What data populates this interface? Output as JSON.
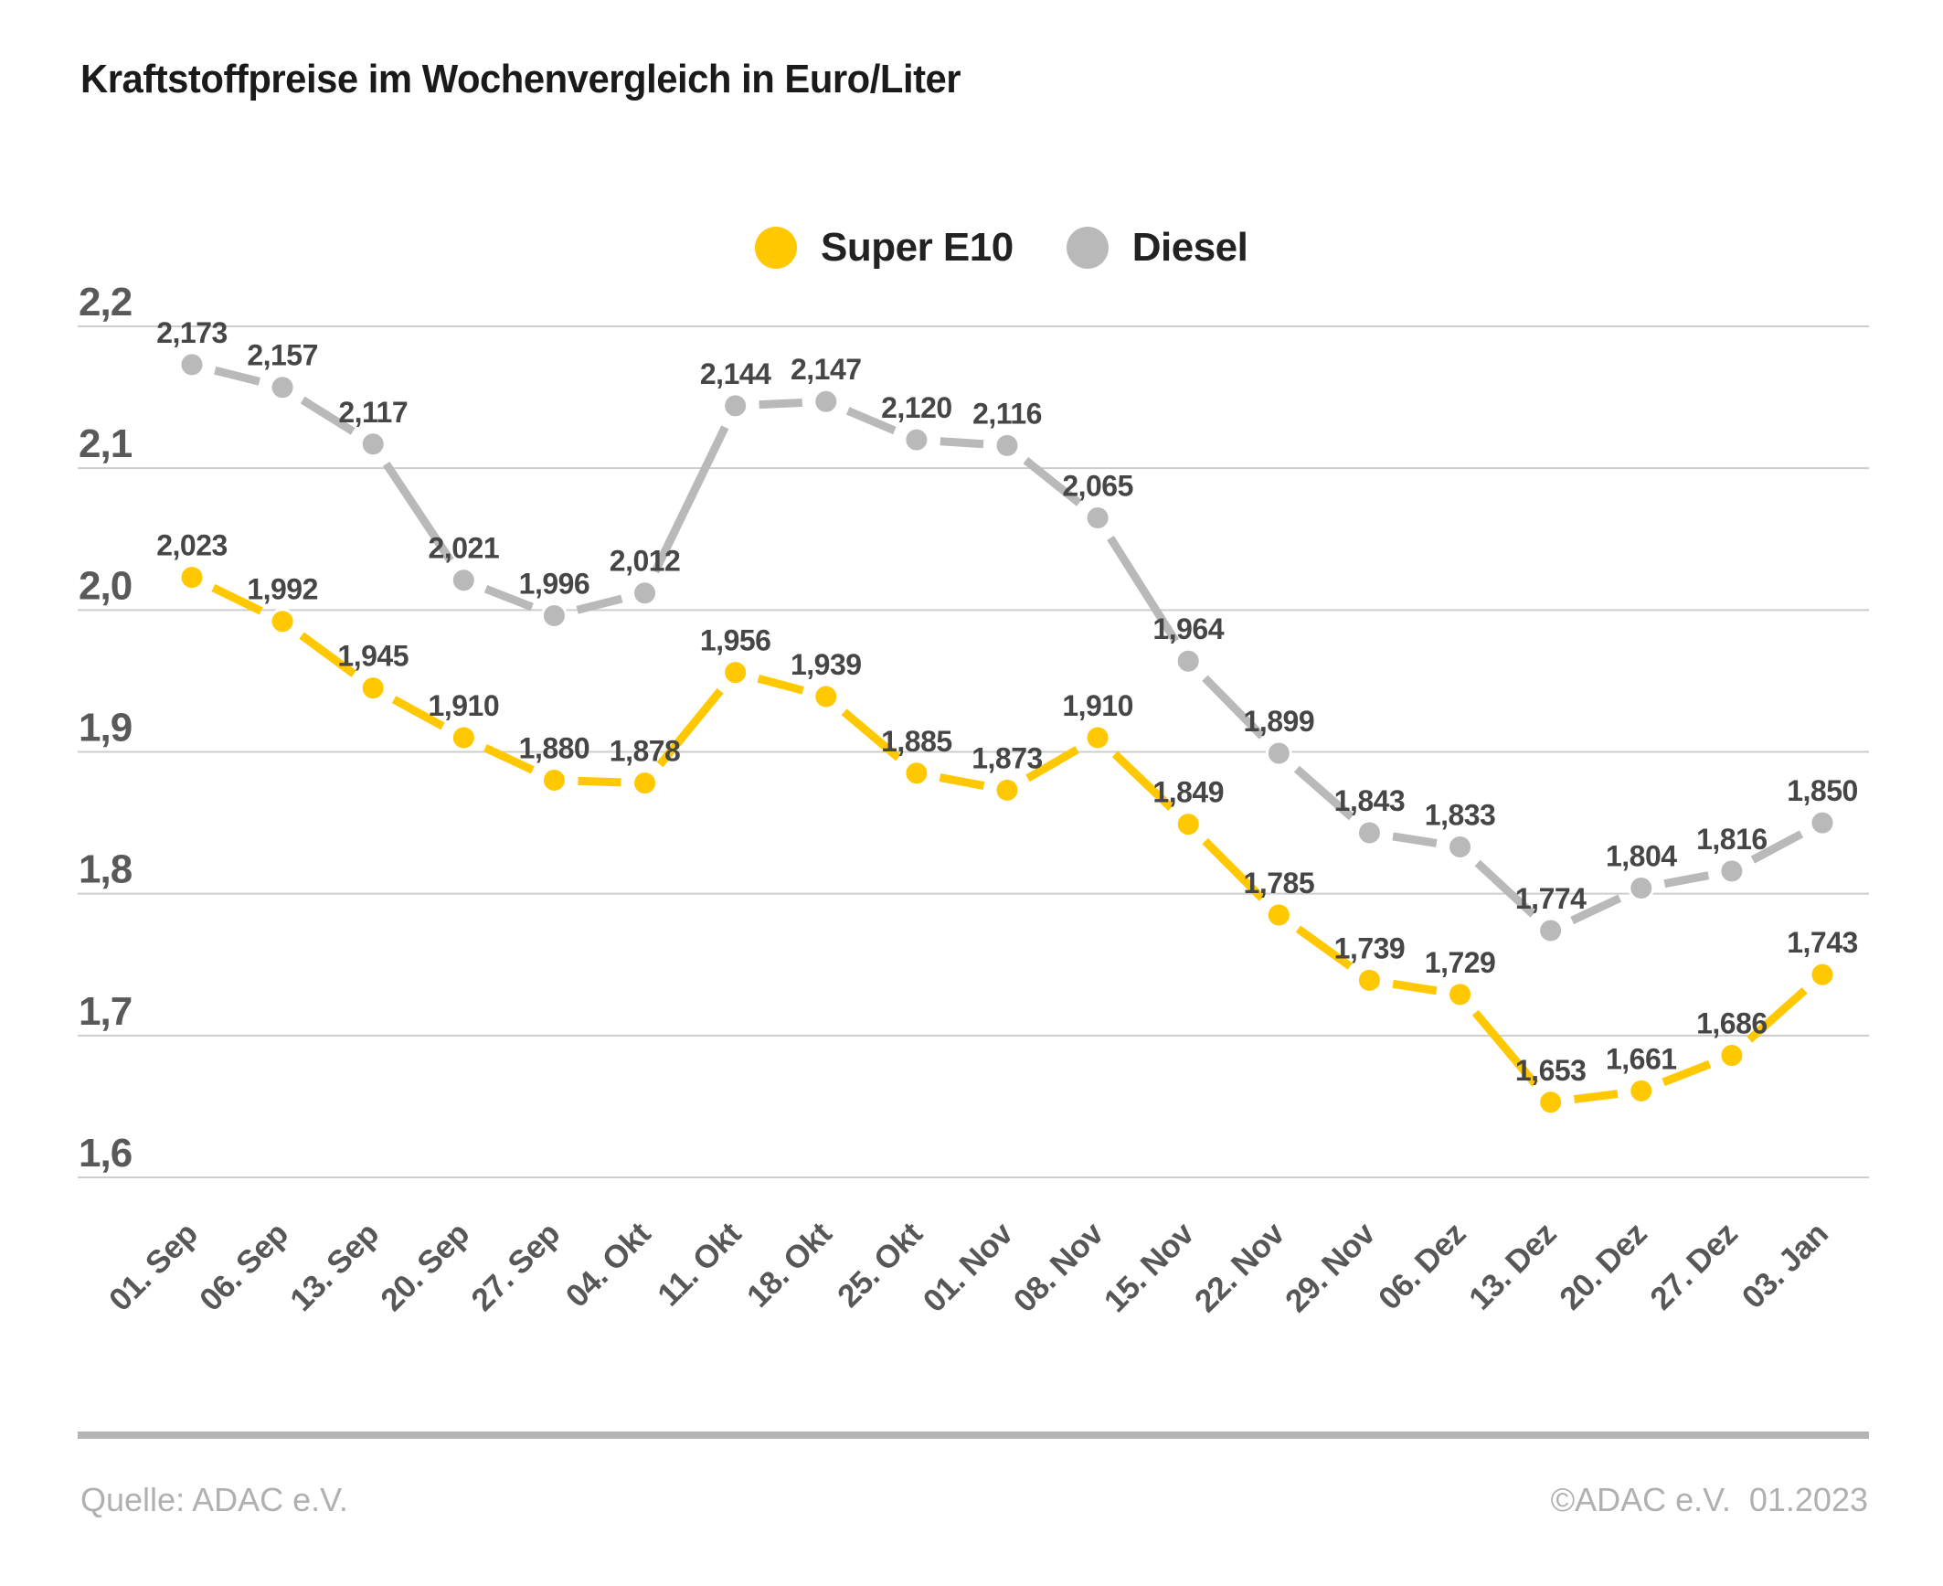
{
  "chart_data": {
    "type": "line",
    "title": "Kraftstoffpreise im Wochenvergleich in Euro/Liter",
    "unit": "Euro/Liter",
    "categories": [
      "01. Sep",
      "06. Sep",
      "13. Sep",
      "20. Sep",
      "27. Sep",
      "04. Okt",
      "11. Okt",
      "18. Okt",
      "25. Okt",
      "01. Nov",
      "08. Nov",
      "15. Nov",
      "22. Nov",
      "29. Nov",
      "06. Dez",
      "13. Dez",
      "20. Dez",
      "27. Dez",
      "03. Jan"
    ],
    "series": [
      {
        "name": "Super E10",
        "color": "#FFC800",
        "values": [
          2.023,
          1.992,
          1.945,
          1.91,
          1.88,
          1.878,
          1.956,
          1.939,
          1.885,
          1.873,
          1.91,
          1.849,
          1.785,
          1.739,
          1.729,
          1.653,
          1.661,
          1.686,
          1.743
        ]
      },
      {
        "name": "Diesel",
        "color": "#B9B9B9",
        "values": [
          2.173,
          2.157,
          2.117,
          2.021,
          1.996,
          2.012,
          2.144,
          2.147,
          2.12,
          2.116,
          2.065,
          1.964,
          1.899,
          1.843,
          1.833,
          1.774,
          1.804,
          1.816,
          1.85
        ]
      }
    ],
    "ylim": [
      1.6,
      2.2
    ],
    "yticks": [
      {
        "value": 2.2,
        "label": "2,2"
      },
      {
        "value": 2.1,
        "label": "2,1"
      },
      {
        "value": 2.0,
        "label": "2,0"
      },
      {
        "value": 1.9,
        "label": "1,9"
      },
      {
        "value": 1.8,
        "label": "1,8"
      },
      {
        "value": 1.7,
        "label": "1,7"
      },
      {
        "value": 1.6,
        "label": "1,6"
      }
    ],
    "grid": true,
    "legend_position": "top-center",
    "decimal_separator": ",",
    "data_labels_shown": true
  },
  "footer": {
    "source": "Quelle: ADAC e.V.",
    "copyright": "©ADAC e.V.  01.2023"
  }
}
